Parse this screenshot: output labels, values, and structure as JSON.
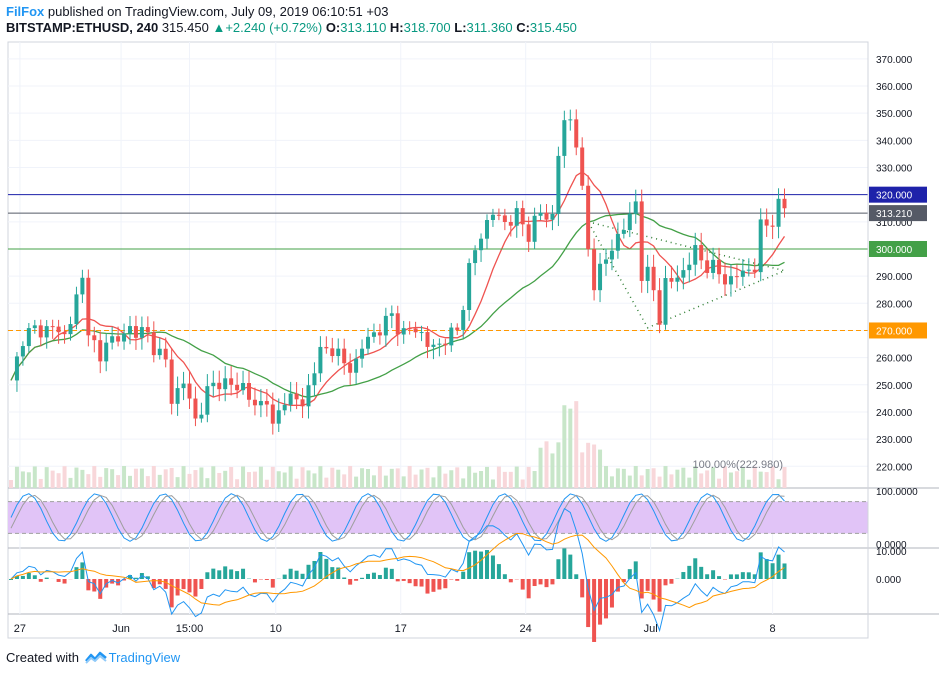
{
  "header": {
    "publisher": "FilFox",
    "published_text": "published on TradingView.com, July 09, 2019 06:10:51 +03",
    "symbol": "BITSTAMP:ETHUSD",
    "interval": "240",
    "last": "315.450",
    "change": "+2.240 (+0.72%)",
    "open_label": "O:",
    "open": "313.110",
    "high_label": "H:",
    "high": "318.700",
    "low_label": "L:",
    "low": "311.360",
    "close_label": "C:",
    "close": "315.450"
  },
  "footer": {
    "created_with": "Created with",
    "brand": "TradingView"
  },
  "colors": {
    "up": "#26a69a",
    "down": "#ef5350",
    "ma_fast": "#ef5350",
    "ma_slow": "#43a047",
    "resistance": "#1e22aa",
    "support_green": "#43a047",
    "support_orange": "#ff9800",
    "rsi_band": "#e1c4f7",
    "macd": "#2196f3",
    "signal": "#ff9800"
  },
  "chart_data": [
    {
      "type": "candlestick",
      "name": "price",
      "ylim": [
        212,
        374
      ],
      "y_ticks": [
        "370.000",
        "360.000",
        "350.000",
        "340.000",
        "330.000",
        "320.000",
        "310.000",
        "300.000",
        "290.000",
        "280.000",
        "270.000",
        "260.000",
        "250.000",
        "240.000",
        "230.000",
        "220.000"
      ],
      "x_ticks": [
        "27",
        "Jun",
        "15:00",
        "10",
        "17",
        "24",
        "Jul",
        "8"
      ],
      "x_tick_positions": [
        1.5,
        18.5,
        30,
        44.5,
        65.5,
        86.5,
        107.5,
        128
      ],
      "candles_ohlc_anchor": [
        [
          0,
          250
        ],
        [
          2,
          268
        ],
        [
          4,
          270
        ],
        [
          7,
          271
        ],
        [
          9,
          268
        ],
        [
          12,
          288
        ],
        [
          13,
          272
        ],
        [
          15,
          257
        ],
        [
          16,
          268
        ],
        [
          18,
          266
        ],
        [
          20,
          271
        ],
        [
          23,
          268
        ],
        [
          26,
          258
        ],
        [
          27,
          245
        ],
        [
          29,
          251
        ],
        [
          31,
          237
        ],
        [
          33,
          247
        ],
        [
          35,
          252
        ],
        [
          37,
          249
        ],
        [
          39,
          250
        ],
        [
          41,
          241
        ],
        [
          43,
          246
        ],
        [
          44,
          233
        ],
        [
          46,
          246
        ],
        [
          49,
          243
        ],
        [
          52,
          262
        ],
        [
          54,
          264
        ],
        [
          56,
          257
        ],
        [
          58,
          258
        ],
        [
          60,
          268
        ],
        [
          62,
          270
        ],
        [
          64,
          276
        ],
        [
          66,
          268
        ],
        [
          68,
          272
        ],
        [
          70,
          264
        ],
        [
          72,
          265
        ],
        [
          75,
          270
        ],
        [
          77,
          292
        ],
        [
          79,
          306
        ],
        [
          81,
          313
        ],
        [
          83,
          310
        ],
        [
          85,
          312
        ],
        [
          87,
          306
        ],
        [
          89,
          313
        ],
        [
          91,
          312
        ],
        [
          92,
          335
        ],
        [
          93,
          346
        ],
        [
          94,
          348
        ],
        [
          95,
          340
        ],
        [
          96,
          320
        ],
        [
          97,
          300
        ],
        [
          98,
          288
        ],
        [
          100,
          296
        ],
        [
          102,
          305
        ],
        [
          104,
          311
        ],
        [
          105,
          318
        ],
        [
          106,
          291
        ],
        [
          107,
          290
        ],
        [
          108,
          285
        ],
        [
          109,
          275
        ],
        [
          110,
          287
        ],
        [
          111,
          288
        ],
        [
          113,
          292
        ],
        [
          115,
          299
        ],
        [
          117,
          294
        ],
        [
          119,
          291
        ],
        [
          121,
          288
        ],
        [
          123,
          292
        ],
        [
          125,
          293
        ],
        [
          126,
          308
        ],
        [
          128,
          311
        ],
        [
          129,
          315
        ]
      ],
      "annotations": {
        "resistance": "320.000",
        "last_price": "313.210",
        "support_green": "300.000",
        "support_orange": "270.000",
        "volume_label": "100.00%(222.980)"
      }
    },
    {
      "type": "line",
      "name": "rsi",
      "y_ticks": [
        "100.0000",
        "0.0000"
      ],
      "band": [
        20,
        80
      ]
    },
    {
      "type": "line",
      "name": "macd",
      "y_ticks": [
        "10.000",
        "0.000"
      ]
    }
  ]
}
